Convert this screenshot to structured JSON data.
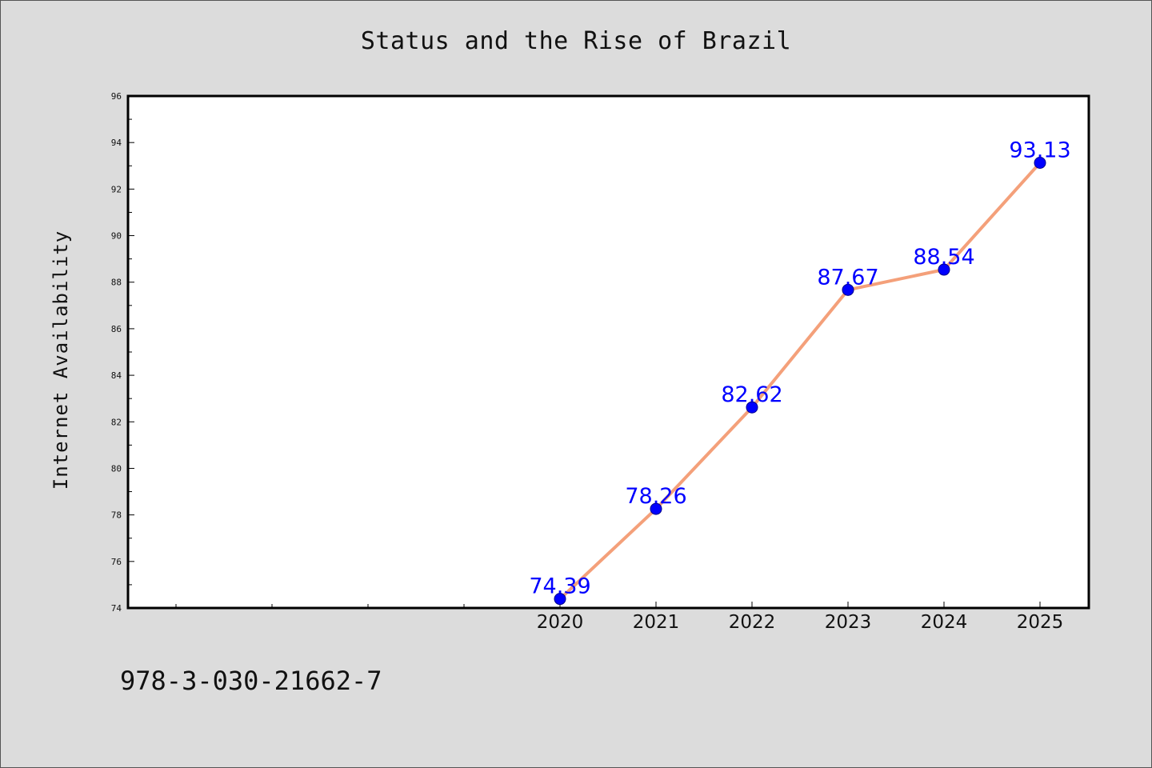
{
  "chart_data": {
    "type": "line",
    "title": "Status and the Rise of Brazil",
    "xlabel": "",
    "ylabel": "Internet Availability",
    "x": [
      "2020",
      "2021",
      "2022",
      "2023",
      "2024",
      "2025"
    ],
    "series": [
      {
        "values": [
          74.39,
          78.26,
          82.62,
          87.67,
          88.54,
          93.13
        ],
        "labels": [
          "74.39",
          "78.26",
          "82.62",
          "87.67",
          "88.54",
          "93.13"
        ]
      }
    ],
    "ylim": [
      74,
      96
    ],
    "yticks": [
      "74",
      "76",
      "78",
      "80",
      "82",
      "84",
      "86",
      "88",
      "90",
      "92",
      "94",
      "96"
    ],
    "grid": false,
    "line_color": "#f4a07a",
    "marker_color": "#0000ff",
    "label_color": "#0000ff"
  },
  "footnote": "978-3-030-21662-7"
}
